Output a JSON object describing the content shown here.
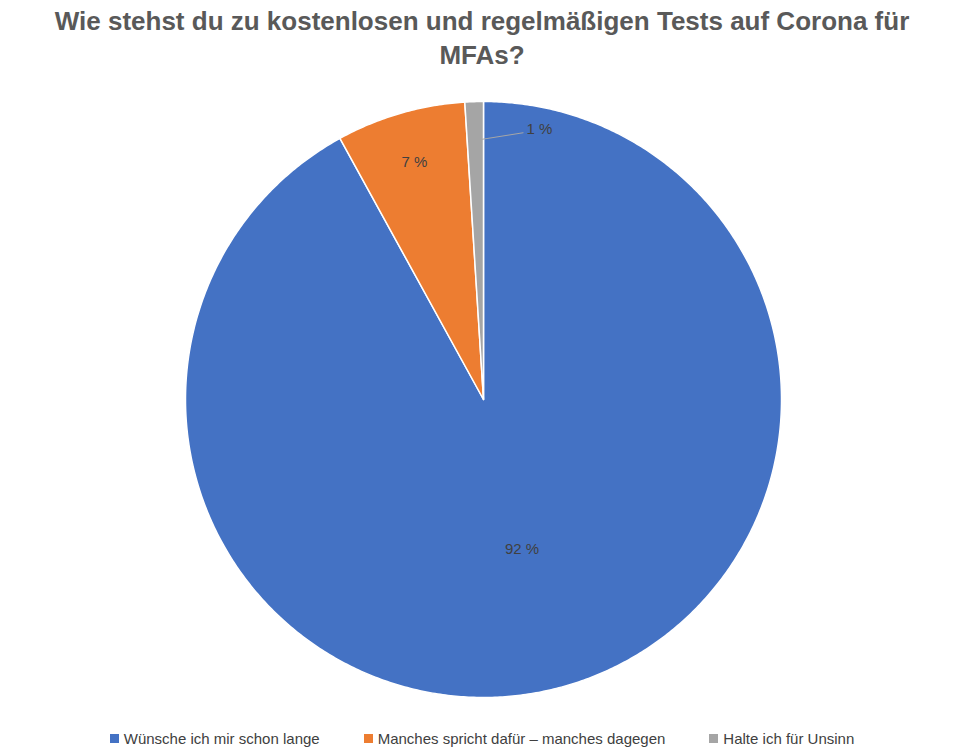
{
  "chart_data": {
    "type": "pie",
    "title": "Wie stehst du zu kostenlosen und regelmäßigen Tests auf Corona für MFAs?",
    "categories": [
      "Wünsche ich mir schon lange",
      "Manches spricht dafür – manches dagegen",
      "Halte ich für Unsinn"
    ],
    "values": [
      92,
      7,
      1
    ],
    "value_labels": [
      "92 %",
      "7 %",
      "1 %"
    ],
    "colors": [
      "#4472c4",
      "#ed7d31",
      "#a5a5a5"
    ],
    "data_labels": true,
    "legend": "bottom"
  }
}
